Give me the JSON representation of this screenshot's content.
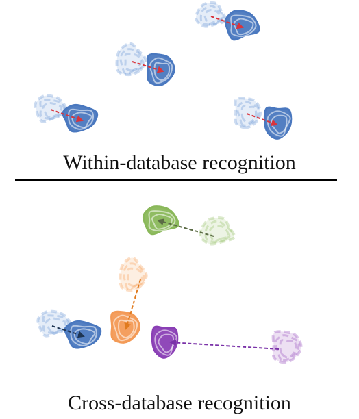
{
  "sections": {
    "within": {
      "caption": "Within-database recognition",
      "pairs": [
        {
          "name": "top-right",
          "source_color": "#6f9bd6",
          "target_color": "#4a78bf",
          "arrow_color": "#d9343c"
        },
        {
          "name": "middle",
          "source_color": "#6f9bd6",
          "target_color": "#4a78bf",
          "arrow_color": "#d9343c"
        },
        {
          "name": "left",
          "source_color": "#6f9bd6",
          "target_color": "#4a78bf",
          "arrow_color": "#d9343c"
        },
        {
          "name": "right",
          "source_color": "#6f9bd6",
          "target_color": "#4a78bf",
          "arrow_color": "#d9343c"
        }
      ]
    },
    "cross": {
      "caption": "Cross-database recognition",
      "pairs": [
        {
          "name": "green",
          "source_color": "#9cc46f",
          "target_color": "#8ab85a",
          "arrow_color": "#5b6b45"
        },
        {
          "name": "orange",
          "source_color": "#f6a45e",
          "target_color": "#f39a56",
          "arrow_color": "#e07a1e"
        },
        {
          "name": "blue",
          "source_color": "#6f9bd6",
          "target_color": "#4a78bf",
          "arrow_color": "#1f3552"
        },
        {
          "name": "purple",
          "source_color": "#9b55bf",
          "target_color": "#8a3fb5",
          "arrow_color": "#7a32a8"
        }
      ]
    }
  }
}
